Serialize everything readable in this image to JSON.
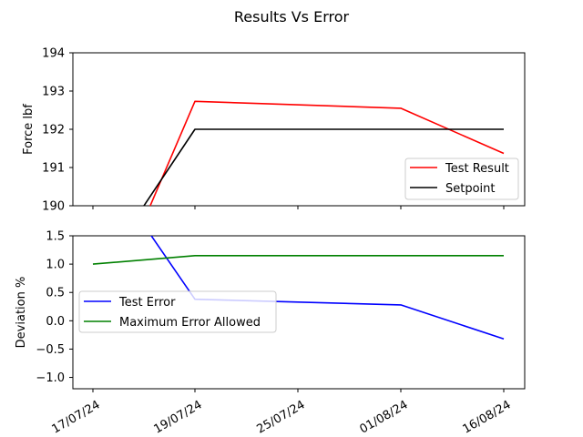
{
  "figure": {
    "title": "Results Vs Error"
  },
  "chart_data": [
    {
      "type": "line",
      "ylabel": "Force lbf",
      "ylim": [
        190,
        194
      ],
      "yticks": [
        "190",
        "191",
        "192",
        "193",
        "194"
      ],
      "x_categories": [
        "17/07/24",
        "19/07/24",
        "25/07/24",
        "01/08/24",
        "16/08/24"
      ],
      "show_x_tick_labels": false,
      "legend_position": "lower-right",
      "series": [
        {
          "name": "Test Result",
          "color": "#ff0000",
          "points": [
            [
              0,
              186.5
            ],
            [
              1,
              192.73
            ],
            [
              3,
              192.55
            ],
            [
              4,
              191.37
            ]
          ]
        },
        {
          "name": "Setpoint",
          "color": "#000000",
          "points": [
            [
              0,
              188.0
            ],
            [
              1,
              192.0
            ],
            [
              4,
              192.0
            ]
          ]
        }
      ]
    },
    {
      "type": "line",
      "ylabel": "Deviation %",
      "ylim": [
        -1.2,
        1.5
      ],
      "yticks": [
        "−1.0",
        "−0.5",
        "0.0",
        "0.5",
        "1.0",
        "1.5"
      ],
      "ytick_values": [
        -1.0,
        -0.5,
        0.0,
        0.5,
        1.0,
        1.5
      ],
      "x_categories": [
        "17/07/24",
        "19/07/24",
        "25/07/24",
        "01/08/24",
        "16/08/24"
      ],
      "show_x_tick_labels": true,
      "legend_position": "center-left",
      "series": [
        {
          "name": "Test Error",
          "color": "#0000ff",
          "points": [
            [
              0,
              3.0
            ],
            [
              1,
              0.38
            ],
            [
              3,
              0.28
            ],
            [
              4,
              -0.32
            ]
          ]
        },
        {
          "name": "Maximum Error Allowed",
          "color": "#008000",
          "points": [
            [
              0,
              1.0
            ],
            [
              1,
              1.15
            ],
            [
              4,
              1.15
            ]
          ]
        }
      ]
    }
  ]
}
